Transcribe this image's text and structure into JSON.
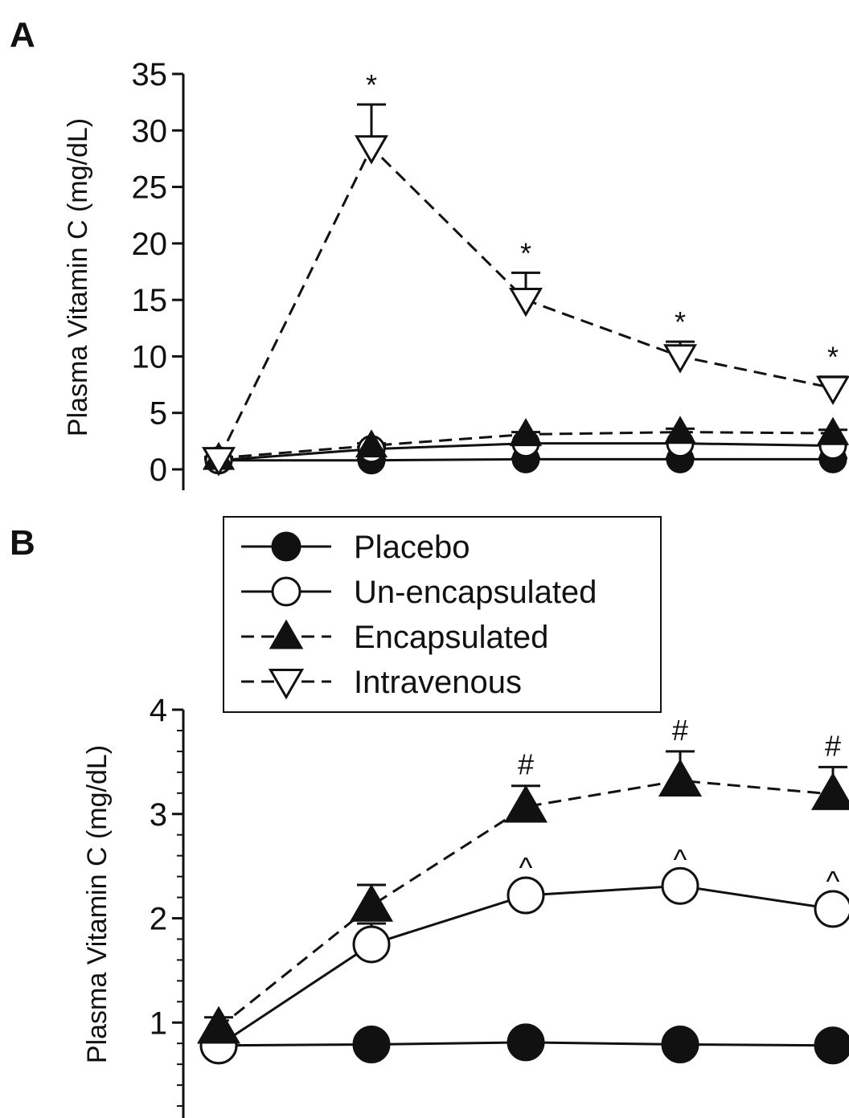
{
  "chart_data": [
    {
      "panel": "A",
      "type": "line",
      "ylabel": "Plasma Vitamin C (mg/dL)",
      "ylim": [
        0,
        35
      ],
      "yticks": [
        "0",
        "5",
        "10",
        "15",
        "20",
        "25",
        "30",
        "35"
      ],
      "x": [
        0,
        1,
        2,
        3,
        4
      ],
      "series": [
        {
          "name": "Placebo",
          "marker": "filled-circle",
          "line": "solid",
          "values": [
            0.8,
            0.8,
            0.9,
            0.9,
            0.9
          ],
          "err": [
            0.1,
            0.1,
            0.1,
            0.1,
            0.1
          ]
        },
        {
          "name": "Un-encapsulated",
          "marker": "open-circle",
          "line": "solid",
          "values": [
            0.8,
            1.8,
            2.3,
            2.3,
            2.1
          ],
          "err": [
            0.1,
            0.2,
            0.1,
            0.1,
            0.1
          ]
        },
        {
          "name": "Encapsulated",
          "marker": "filled-triangle",
          "line": "dashed",
          "values": [
            1.0,
            2.1,
            3.1,
            3.3,
            3.2
          ],
          "err": [
            0.1,
            0.2,
            0.2,
            0.3,
            0.3
          ]
        },
        {
          "name": "Intravenous",
          "marker": "open-triangle-down",
          "line": "dashed",
          "values": [
            0.9,
            28.5,
            15.0,
            10.0,
            7.2
          ],
          "err": [
            0.1,
            3.8,
            2.4,
            1.3,
            1.0
          ]
        }
      ],
      "annotations": [
        {
          "series": "Intravenous",
          "x": 1,
          "text": "*"
        },
        {
          "series": "Intravenous",
          "x": 2,
          "text": "*"
        },
        {
          "series": "Intravenous",
          "x": 3,
          "text": "*"
        },
        {
          "series": "Intravenous",
          "x": 4,
          "text": "*"
        }
      ]
    },
    {
      "panel": "B",
      "type": "line",
      "ylabel": "Plasma Vitamin C (mg/dL)",
      "ylim": [
        0,
        4
      ],
      "yticks": [
        "1",
        "2",
        "3",
        "4"
      ],
      "x": [
        0,
        1,
        2,
        3,
        4
      ],
      "series": [
        {
          "name": "Placebo",
          "marker": "filled-circle",
          "line": "solid",
          "values": [
            0.78,
            0.79,
            0.81,
            0.79,
            0.78
          ],
          "err": [
            0,
            0,
            0,
            0,
            0
          ]
        },
        {
          "name": "Un-encapsulated",
          "marker": "open-circle",
          "line": "solid",
          "values": [
            0.78,
            1.75,
            2.22,
            2.31,
            2.09
          ],
          "err": [
            0.05,
            0.2,
            0.06,
            0.05,
            0.06
          ]
        },
        {
          "name": "Encapsulated",
          "marker": "filled-triangle",
          "line": "dashed",
          "values": [
            0.95,
            2.12,
            3.07,
            3.32,
            3.19
          ],
          "err": [
            0.1,
            0.2,
            0.2,
            0.28,
            0.26
          ]
        }
      ],
      "annotations": [
        {
          "series": "Encapsulated",
          "x": 2,
          "text": "#"
        },
        {
          "series": "Encapsulated",
          "x": 3,
          "text": "#"
        },
        {
          "series": "Encapsulated",
          "x": 4,
          "text": "#"
        },
        {
          "series": "Un-encapsulated",
          "x": 2,
          "text": "^"
        },
        {
          "series": "Un-encapsulated",
          "x": 3,
          "text": "^"
        },
        {
          "series": "Un-encapsulated",
          "x": 4,
          "text": "^"
        }
      ]
    }
  ],
  "legend": {
    "items": [
      {
        "label": "Placebo",
        "marker": "filled-circle",
        "line": "solid"
      },
      {
        "label": "Un-encapsulated",
        "marker": "open-circle",
        "line": "solid"
      },
      {
        "label": "Encapsulated",
        "marker": "filled-triangle",
        "line": "dashed"
      },
      {
        "label": "Intravenous",
        "marker": "open-triangle-down",
        "line": "dashed"
      }
    ]
  }
}
